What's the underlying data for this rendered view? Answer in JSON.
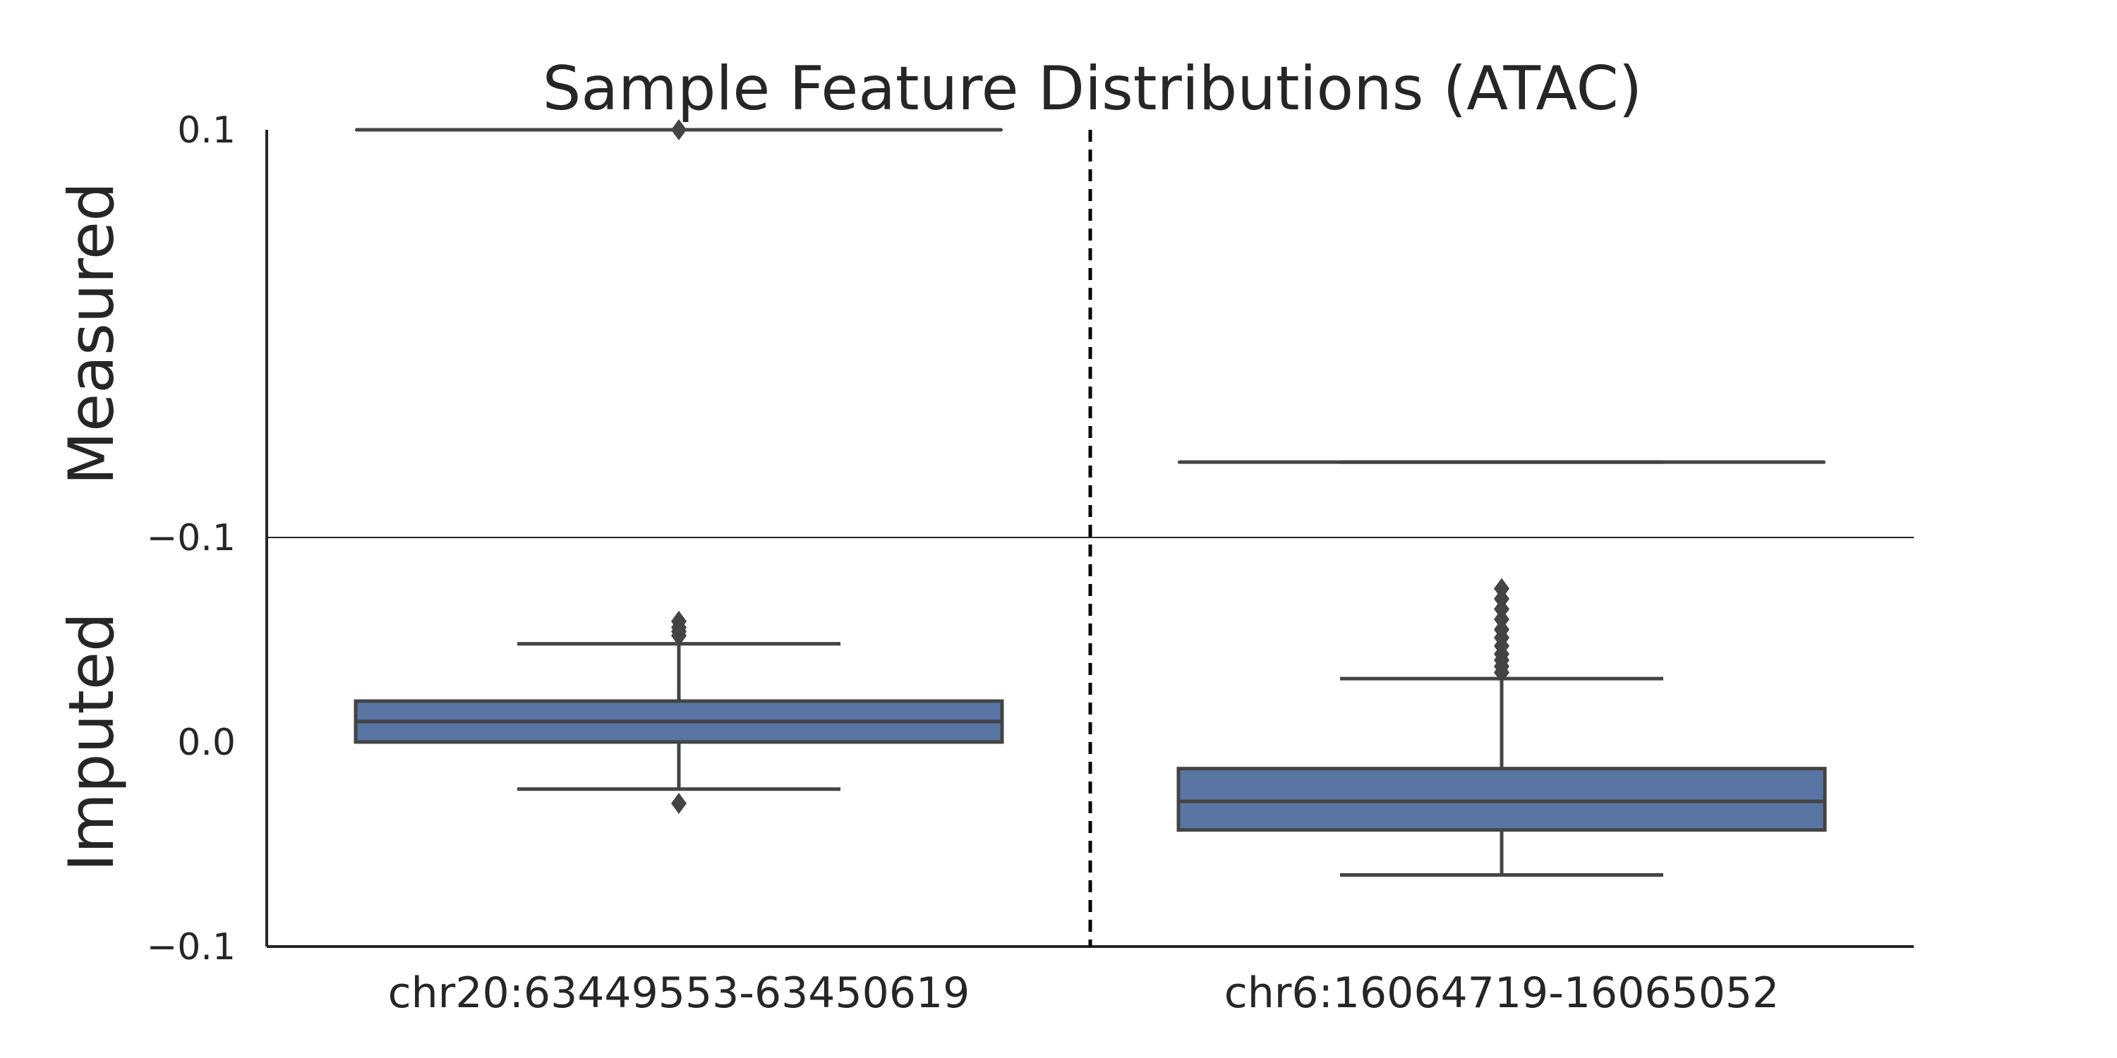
{
  "chart_data": {
    "type": "boxplot",
    "title": "Sample Feature Distributions (ATAC)",
    "categories": [
      "chr20:63449553-63450619",
      "chr6:16064719-16065052"
    ],
    "separator": "dashed-vertical",
    "colors": {
      "box": "#5875a4",
      "line": "#444444",
      "axis": "#262626"
    },
    "panels": [
      {
        "name": "Measured",
        "ylim": [
          -0.1,
          0.1
        ],
        "ticks": [
          -0.1,
          0.1
        ],
        "tick_labels": [
          "−0.1",
          "0.1"
        ],
        "boxes": [
          {
            "category": "chr20:63449553-63450619",
            "q1": 0.1,
            "median": 0.1,
            "q3": 0.1,
            "whisker_low": 0.1,
            "whisker_high": 0.1,
            "outliers": [
              0.1
            ]
          },
          {
            "category": "chr6:16064719-16065052",
            "q1": -0.063,
            "median": -0.063,
            "q3": -0.063,
            "whisker_low": -0.063,
            "whisker_high": -0.063,
            "outliers": []
          }
        ]
      },
      {
        "name": "Imputed",
        "ylim": [
          -0.1,
          0.1
        ],
        "ticks": [
          -0.1,
          0.0,
          0.1
        ],
        "tick_labels": [
          "−0.1",
          "0.0",
          ""
        ],
        "boxes": [
          {
            "category": "chr20:63449553-63450619",
            "q1": 0.0,
            "median": 0.01,
            "q3": 0.02,
            "whisker_low": -0.023,
            "whisker_high": 0.048,
            "outliers": [
              -0.03,
              0.052,
              0.054,
              0.056,
              0.059
            ]
          },
          {
            "category": "chr6:16064719-16065052",
            "q1": -0.043,
            "median": -0.029,
            "q3": -0.013,
            "whisker_low": -0.065,
            "whisker_high": 0.031,
            "outliers": [
              0.034,
              0.037,
              0.04,
              0.043,
              0.047,
              0.051,
              0.055,
              0.06,
              0.065,
              0.07,
              0.075
            ]
          }
        ]
      }
    ]
  }
}
